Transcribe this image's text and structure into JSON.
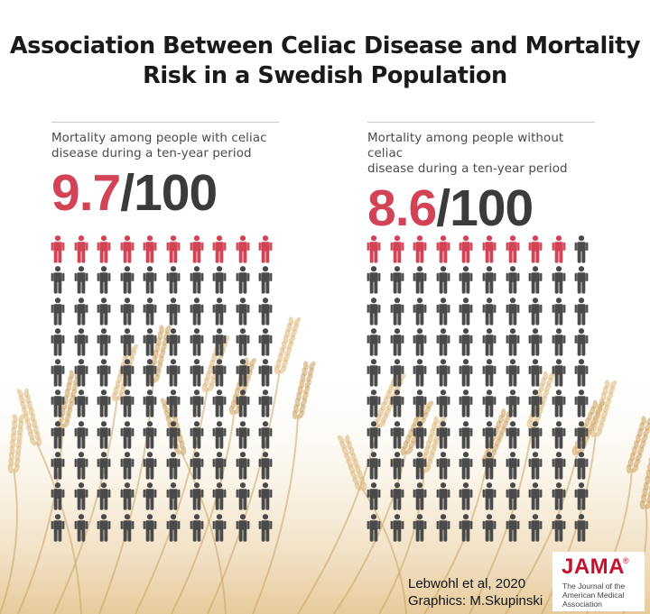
{
  "title": {
    "line1": "Association Between Celiac Disease and Mortality",
    "line2": "Risk in a Swedish Population"
  },
  "panels": [
    {
      "caption_line1": "Mortality among people with celiac",
      "caption_line2": "disease during a ten-year period",
      "rate": "9.7",
      "denominator": "/100",
      "highlighted_figures": 10,
      "total_figures": 100
    },
    {
      "caption_line1": "Mortality among people without celiac",
      "caption_line2": "disease during a ten-year period",
      "rate": "8.6",
      "denominator": "/100",
      "highlighted_figures": 9,
      "total_figures": 100
    }
  ],
  "credits": {
    "line1": "Lebwohl et al, 2020",
    "line2": "Graphics: M.Skupinski"
  },
  "logo": {
    "word": "JAMA",
    "registered": "®",
    "subtitle": "The Journal of the American Medical Association"
  },
  "colors": {
    "highlight": "#d24355",
    "figure": "#4a4a4a",
    "logo_red": "#c8102e"
  },
  "icons": {
    "figure": "person-icon"
  }
}
